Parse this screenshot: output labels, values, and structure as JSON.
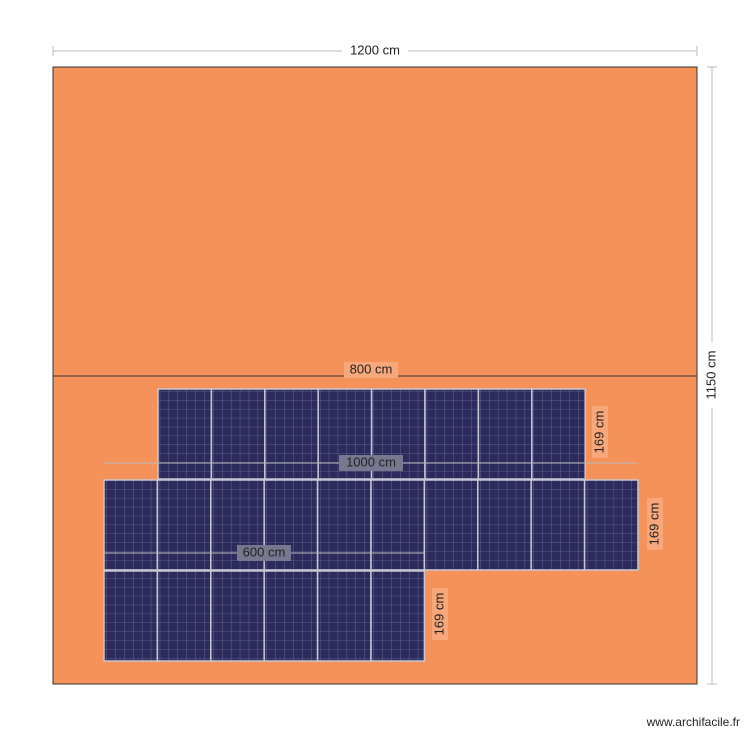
{
  "dimensions": {
    "roof_width": "1200 cm",
    "roof_height": "1150 cm",
    "row1_width": "800 cm",
    "row1_height": "169 cm",
    "row2_width": "1000 cm",
    "row2_height": "169 cm",
    "row3_width": "600 cm",
    "row3_height": "169 cm"
  },
  "footer": {
    "watermark": "www.archifacile.fr"
  }
}
